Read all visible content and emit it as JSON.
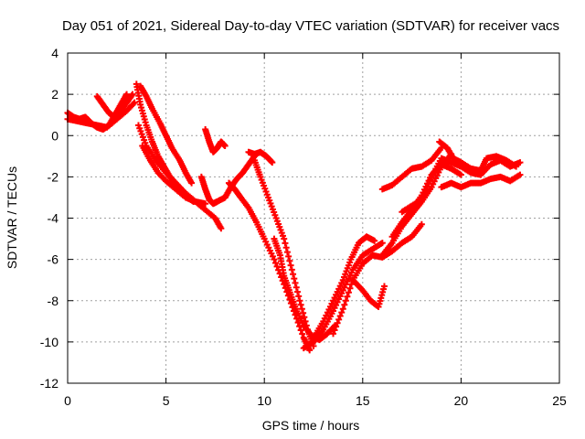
{
  "chart_data": {
    "type": "scatter",
    "title": "Day 051 of 2021, Sidereal Day-to-day VTEC variation (SDTVAR) for receiver vacs",
    "xlabel": "GPS time / hours",
    "ylabel": "SDTVAR / TECUs",
    "xlim": [
      0,
      25
    ],
    "ylim": [
      -12,
      4
    ],
    "xticks": [
      "0",
      "5",
      "10",
      "15",
      "20",
      "25"
    ],
    "yticks": [
      "-12",
      "-10",
      "-8",
      "-6",
      "-4",
      "-2",
      "0",
      "2",
      "4"
    ],
    "grid": true,
    "marker": "+",
    "color": "#ff0000",
    "series": [
      {
        "x": [
          0.0,
          0.3,
          0.6,
          0.9,
          1.2,
          1.5,
          1.8,
          2.1,
          2.4,
          2.7,
          3.0
        ],
        "y": [
          1.1,
          0.9,
          0.8,
          0.9,
          0.6,
          0.4,
          0.3,
          0.5,
          1.0,
          1.5,
          2.0
        ]
      },
      {
        "x": [
          0.0,
          0.5,
          1.0,
          1.5,
          2.0,
          2.5,
          3.0,
          3.4
        ],
        "y": [
          0.8,
          0.7,
          0.6,
          0.5,
          0.4,
          0.8,
          1.2,
          1.6
        ]
      },
      {
        "x": [
          1.5,
          1.8,
          2.1,
          2.4,
          2.7,
          3.0,
          3.3
        ],
        "y": [
          1.9,
          1.5,
          1.1,
          0.9,
          1.2,
          1.6,
          2.0
        ]
      },
      {
        "x": [
          3.5,
          3.7,
          4.0,
          4.3,
          4.6,
          4.9,
          5.2,
          5.5,
          5.8,
          6.1,
          6.4
        ],
        "y": [
          2.5,
          1.5,
          0.5,
          -0.3,
          -1.0,
          -1.5,
          -2.0,
          -2.4,
          -2.8,
          -3.0,
          -3.2
        ]
      },
      {
        "x": [
          3.6,
          4.0,
          4.5,
          5.0,
          5.5,
          6.0,
          6.5,
          7.0,
          7.5,
          7.8
        ],
        "y": [
          0.5,
          -0.5,
          -1.2,
          -1.8,
          -2.3,
          -2.8,
          -3.2,
          -3.6,
          -4.0,
          -4.5
        ]
      },
      {
        "x": [
          3.7,
          4.0,
          4.3,
          4.7,
          5.0,
          5.3,
          5.7,
          6.0,
          6.3
        ],
        "y": [
          2.4,
          1.9,
          1.3,
          0.6,
          0.0,
          -0.6,
          -1.2,
          -1.8,
          -2.3
        ]
      },
      {
        "x": [
          3.8,
          4.2,
          4.6,
          5.0,
          5.5,
          6.0,
          6.5,
          7.0
        ],
        "y": [
          -0.5,
          -1.2,
          -1.8,
          -2.2,
          -2.6,
          -3.0,
          -3.2,
          -3.3
        ]
      },
      {
        "x": [
          7.0,
          7.2,
          7.4,
          7.6,
          7.8,
          8.0
        ],
        "y": [
          0.3,
          -0.3,
          -0.8,
          -0.6,
          -0.3,
          -0.5
        ]
      },
      {
        "x": [
          6.8,
          7.0,
          7.2,
          7.4,
          7.6,
          8.0
        ],
        "y": [
          -2.0,
          -2.6,
          -3.1,
          -3.3,
          -3.2,
          -3.0
        ]
      },
      {
        "x": [
          8.0,
          8.3,
          8.6,
          8.9,
          9.2,
          9.5
        ],
        "y": [
          -3.0,
          -2.5,
          -2.1,
          -1.8,
          -1.4,
          -1.0
        ]
      },
      {
        "x": [
          9.2,
          9.5,
          9.8,
          10.1,
          10.4
        ],
        "y": [
          -0.8,
          -0.9,
          -0.8,
          -1.0,
          -1.3
        ]
      },
      {
        "x": [
          8.2,
          8.5,
          8.8,
          9.2,
          9.6,
          10.0,
          10.5,
          11.0,
          11.5,
          12.0,
          12.3
        ],
        "y": [
          -2.3,
          -2.6,
          -3.0,
          -3.5,
          -4.2,
          -5.0,
          -6.0,
          -7.2,
          -8.5,
          -9.8,
          -10.4
        ]
      },
      {
        "x": [
          9.5,
          9.8,
          10.2,
          10.6,
          11.0,
          11.4,
          11.8,
          12.2,
          12.5
        ],
        "y": [
          -1.2,
          -2.0,
          -3.0,
          -4.0,
          -5.0,
          -6.5,
          -8.0,
          -9.4,
          -10.2
        ]
      },
      {
        "x": [
          10.5,
          10.8,
          11.0,
          11.3,
          11.6,
          12.0,
          12.4,
          12.8,
          13.2,
          13.6
        ],
        "y": [
          -5.0,
          -5.8,
          -6.8,
          -7.6,
          -8.4,
          -9.2,
          -9.7,
          -9.9,
          -9.6,
          -9.2
        ]
      },
      {
        "x": [
          12.0,
          12.5,
          13.0,
          13.5,
          14.0,
          14.5,
          15.0,
          15.5,
          16.0
        ],
        "y": [
          -10.3,
          -10.0,
          -9.4,
          -8.5,
          -7.5,
          -6.5,
          -5.8,
          -5.5,
          -5.2
        ]
      },
      {
        "x": [
          12.5,
          13.0,
          13.5,
          14.0,
          14.4,
          14.8,
          15.2,
          15.6
        ],
        "y": [
          -9.8,
          -9.0,
          -8.0,
          -7.0,
          -6.0,
          -5.2,
          -4.9,
          -5.1
        ]
      },
      {
        "x": [
          13.5,
          14.0,
          14.5,
          15.0,
          15.5,
          16.0,
          16.5,
          17.0,
          17.5,
          18.0
        ],
        "y": [
          -9.6,
          -8.4,
          -7.0,
          -6.2,
          -5.8,
          -5.9,
          -5.6,
          -5.2,
          -4.9,
          -4.3
        ]
      },
      {
        "x": [
          14.5,
          15.0,
          15.4,
          15.8,
          16.1
        ],
        "y": [
          -7.0,
          -7.5,
          -8.0,
          -8.3,
          -7.3
        ]
      },
      {
        "x": [
          16.0,
          16.5,
          17.0,
          17.5,
          18.0,
          18.5,
          19.0
        ],
        "y": [
          -2.6,
          -2.4,
          -2.0,
          -1.6,
          -1.5,
          -1.2,
          -0.6
        ]
      },
      {
        "x": [
          16.0,
          16.5,
          17.0,
          17.5,
          18.0,
          18.5,
          19.0,
          19.5
        ],
        "y": [
          -5.8,
          -5.2,
          -4.4,
          -3.8,
          -3.2,
          -2.5,
          -1.5,
          -0.9
        ]
      },
      {
        "x": [
          16.5,
          17.0,
          17.5,
          18.0,
          18.5,
          19.0,
          19.5,
          20.0
        ],
        "y": [
          -4.9,
          -4.2,
          -3.6,
          -2.9,
          -1.9,
          -1.4,
          -1.6,
          -1.9
        ]
      },
      {
        "x": [
          17.0,
          17.5,
          18.0,
          18.5,
          19.0,
          19.5,
          20.0,
          20.5,
          21.0,
          21.5,
          22.0,
          22.5,
          23.0
        ],
        "y": [
          -3.7,
          -3.4,
          -3.1,
          -2.0,
          -1.1,
          -1.3,
          -1.5,
          -1.8,
          -1.9,
          -1.4,
          -1.2,
          -1.5,
          -1.3
        ]
      },
      {
        "x": [
          19.0,
          19.5,
          20.0,
          20.5,
          21.0,
          21.5,
          22.0,
          22.5,
          23.0
        ],
        "y": [
          -2.5,
          -2.3,
          -2.5,
          -2.3,
          -2.3,
          -2.1,
          -2.0,
          -2.2,
          -1.9
        ]
      },
      {
        "x": [
          18.9,
          19.3,
          19.6,
          20.0,
          20.5,
          21.0,
          21.3,
          21.8,
          22.3,
          22.8
        ],
        "y": [
          -0.3,
          -0.6,
          -1.1,
          -1.3,
          -1.6,
          -1.7,
          -1.1,
          -1.0,
          -1.2,
          -1.5
        ]
      }
    ]
  }
}
